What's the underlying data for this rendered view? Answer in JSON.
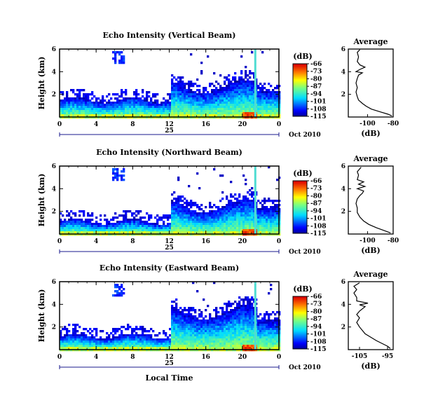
{
  "chart_data": [
    {
      "type": "heatmap",
      "title": "Echo Intensity (Vertical Beam)",
      "ylabel": "Height (km)",
      "xlabel": "",
      "date_label": "Oct 2010",
      "day_label": "25",
      "x_ticks": [
        "0",
        "4",
        "8",
        "12",
        "16",
        "20",
        "0"
      ],
      "y_ticks": [
        "2",
        "4",
        "6"
      ],
      "ylim": [
        0,
        6
      ],
      "xlim": [
        0,
        24
      ],
      "colorbar": {
        "unit": "(dB)",
        "ticks": [
          "-66",
          "-73",
          "-80",
          "-87",
          "-94",
          "-101",
          "-108",
          "-115"
        ],
        "range": [
          -115,
          -66
        ]
      },
      "profile": {
        "title": "Average",
        "xlabel": "(dB)",
        "x_ticks": [
          "-100",
          "-80"
        ],
        "y_ticks": [
          "2",
          "4",
          "6"
        ],
        "xlim": [
          -115,
          -80
        ],
        "points": [
          [
            -81,
            0.1
          ],
          [
            -84,
            0.25
          ],
          [
            -90,
            0.45
          ],
          [
            -97,
            0.7
          ],
          [
            -101,
            0.95
          ],
          [
            -104,
            1.2
          ],
          [
            -107,
            1.5
          ],
          [
            -108,
            1.8
          ],
          [
            -109,
            2.2
          ],
          [
            -108,
            2.6
          ],
          [
            -109,
            3.0
          ],
          [
            -108,
            3.4
          ],
          [
            -107,
            3.7
          ],
          [
            -104,
            3.9
          ],
          [
            -109,
            4.0
          ],
          [
            -106,
            4.2
          ],
          [
            -102,
            4.4
          ],
          [
            -106,
            4.6
          ],
          [
            -108,
            4.9
          ],
          [
            -107,
            5.3
          ],
          [
            -108,
            5.7
          ],
          [
            -106,
            5.95
          ]
        ]
      }
    },
    {
      "type": "heatmap",
      "title": "Echo Intensity (Northward Beam)",
      "ylabel": "Height (km)",
      "xlabel": "",
      "date_label": "Oct 2010",
      "day_label": "25",
      "x_ticks": [
        "0",
        "4",
        "8",
        "12",
        "16",
        "20",
        "0"
      ],
      "y_ticks": [
        "2",
        "4",
        "6"
      ],
      "ylim": [
        0,
        6
      ],
      "xlim": [
        0,
        24
      ],
      "colorbar": {
        "unit": "(dB)",
        "ticks": [
          "-66",
          "-73",
          "-80",
          "-87",
          "-94",
          "-101",
          "-108",
          "-115"
        ],
        "range": [
          -115,
          -66
        ]
      },
      "profile": {
        "title": "Average",
        "xlabel": "(dB)",
        "x_ticks": [
          "-100",
          "-80"
        ],
        "y_ticks": [
          "2",
          "4",
          "6"
        ],
        "xlim": [
          -115,
          -80
        ],
        "points": [
          [
            -82,
            0.1
          ],
          [
            -87,
            0.3
          ],
          [
            -93,
            0.55
          ],
          [
            -99,
            0.85
          ],
          [
            -103,
            1.15
          ],
          [
            -106,
            1.5
          ],
          [
            -108,
            1.9
          ],
          [
            -108,
            2.3
          ],
          [
            -109,
            2.7
          ],
          [
            -108,
            3.1
          ],
          [
            -106,
            3.4
          ],
          [
            -104,
            3.6
          ],
          [
            -103,
            3.8
          ],
          [
            -108,
            4.0
          ],
          [
            -102,
            4.2
          ],
          [
            -107,
            4.4
          ],
          [
            -103,
            4.6
          ],
          [
            -108,
            4.8
          ],
          [
            -107,
            5.2
          ],
          [
            -108,
            5.5
          ],
          [
            -105,
            5.9
          ]
        ]
      }
    },
    {
      "type": "heatmap",
      "title": "Echo Intensity (Eastward Beam)",
      "ylabel": "Height (km)",
      "xlabel": "Local Time",
      "date_label": "Oct 2010",
      "day_label": "25",
      "x_ticks": [
        "0",
        "4",
        "8",
        "12",
        "16",
        "20",
        "0"
      ],
      "y_ticks": [
        "2",
        "4",
        "6"
      ],
      "ylim": [
        0,
        6
      ],
      "xlim": [
        0,
        24
      ],
      "colorbar": {
        "unit": "(dB)",
        "ticks": [
          "-66",
          "-73",
          "-80",
          "-87",
          "-94",
          "-101",
          "-108",
          "-115"
        ],
        "range": [
          -115,
          -66
        ]
      },
      "profile": {
        "title": "Average",
        "xlabel": "(dB)",
        "x_ticks": [
          "-105",
          "-95"
        ],
        "y_ticks": [
          "2",
          "4",
          "6"
        ],
        "xlim": [
          -109,
          -93
        ],
        "points": [
          [
            -94,
            0.1
          ],
          [
            -95,
            0.3
          ],
          [
            -97,
            0.55
          ],
          [
            -99,
            0.8
          ],
          [
            -101,
            1.1
          ],
          [
            -103,
            1.4
          ],
          [
            -104,
            1.7
          ],
          [
            -105,
            2.0
          ],
          [
            -106,
            2.4
          ],
          [
            -105,
            2.8
          ],
          [
            -106,
            3.1
          ],
          [
            -105,
            3.4
          ],
          [
            -104,
            3.6
          ],
          [
            -103,
            3.8
          ],
          [
            -105,
            3.95
          ],
          [
            -102,
            4.1
          ],
          [
            -106,
            4.3
          ],
          [
            -106,
            4.6
          ],
          [
            -107,
            5.0
          ],
          [
            -106,
            5.3
          ],
          [
            -107,
            5.6
          ],
          [
            -105,
            5.9
          ]
        ]
      }
    }
  ]
}
